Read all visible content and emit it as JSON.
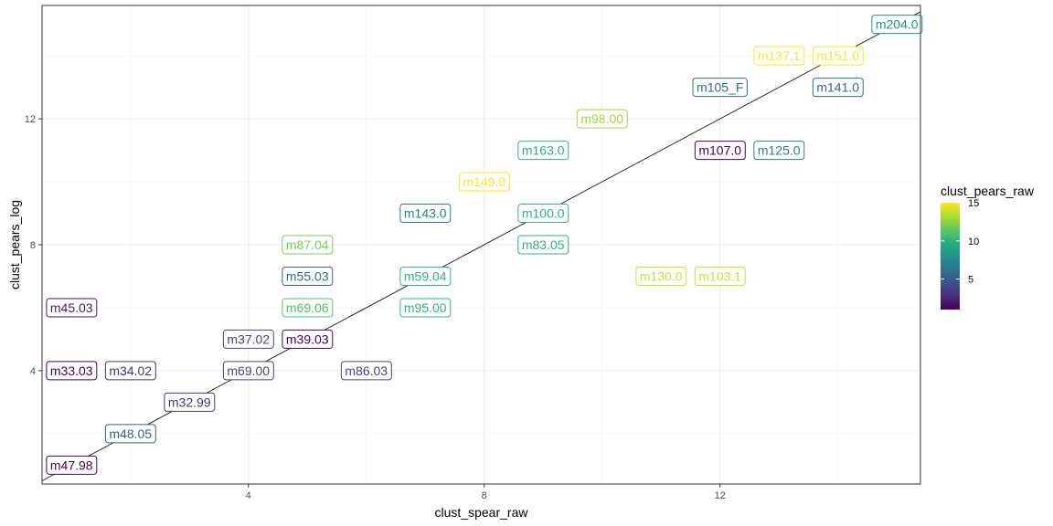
{
  "chart_data": {
    "type": "scatter",
    "title": "",
    "xlabel": "clust_spear_raw",
    "ylabel": "clust_pears_log",
    "xlim": [
      0.5,
      15.4
    ],
    "ylim": [
      0.4,
      15.6
    ],
    "xticks": [
      4,
      8,
      12
    ],
    "yticks": [
      4,
      8,
      12
    ],
    "grid": true,
    "reference_line": "y = x",
    "color_scale": "viridis",
    "legend": {
      "title": "clust_pears_raw",
      "position": "right",
      "range": [
        1,
        15
      ],
      "ticks": [
        5,
        10,
        15
      ]
    },
    "points": [
      {
        "label": "m204.0",
        "x": 15,
        "y": 15,
        "color_value": 8
      },
      {
        "label": "m137.1",
        "x": 13,
        "y": 14,
        "color_value": 15
      },
      {
        "label": "m151.0",
        "x": 14,
        "y": 14,
        "color_value": 15
      },
      {
        "label": "m105_F",
        "x": 12,
        "y": 13,
        "color_value": 6
      },
      {
        "label": "m141.0",
        "x": 14,
        "y": 13,
        "color_value": 6
      },
      {
        "label": "m98.00",
        "x": 10,
        "y": 12,
        "color_value": 13
      },
      {
        "label": "m163.0",
        "x": 9,
        "y": 11,
        "color_value": 10
      },
      {
        "label": "m107.0",
        "x": 12,
        "y": 11,
        "color_value": 1
      },
      {
        "label": "m125.0",
        "x": 13,
        "y": 11,
        "color_value": 7
      },
      {
        "label": "m149.0",
        "x": 8,
        "y": 10,
        "color_value": 15
      },
      {
        "label": "m143.0",
        "x": 7,
        "y": 9,
        "color_value": 7
      },
      {
        "label": "m100.0",
        "x": 9,
        "y": 9,
        "color_value": 10
      },
      {
        "label": "m87.04",
        "x": 5,
        "y": 8,
        "color_value": 12
      },
      {
        "label": "m83.05",
        "x": 9,
        "y": 8,
        "color_value": 10
      },
      {
        "label": "m55.03",
        "x": 5,
        "y": 7,
        "color_value": 6
      },
      {
        "label": "m59.04",
        "x": 7,
        "y": 7,
        "color_value": 10
      },
      {
        "label": "m130.0",
        "x": 11,
        "y": 7,
        "color_value": 14
      },
      {
        "label": "m103.1",
        "x": 12,
        "y": 7,
        "color_value": 14
      },
      {
        "label": "m45.03",
        "x": 1,
        "y": 6,
        "color_value": 2
      },
      {
        "label": "m69.06",
        "x": 5,
        "y": 6,
        "color_value": 11
      },
      {
        "label": "m95.00",
        "x": 7,
        "y": 6,
        "color_value": 10
      },
      {
        "label": "m37.02",
        "x": 4,
        "y": 5,
        "color_value": 4
      },
      {
        "label": "m39.03",
        "x": 5,
        "y": 5,
        "color_value": 1
      },
      {
        "label": "m33.03",
        "x": 1,
        "y": 4,
        "color_value": 1
      },
      {
        "label": "m34.02",
        "x": 2,
        "y": 4,
        "color_value": 3
      },
      {
        "label": "m69.00",
        "x": 4,
        "y": 4,
        "color_value": 4
      },
      {
        "label": "m86.03",
        "x": 6,
        "y": 4,
        "color_value": 4
      },
      {
        "label": "m32.99",
        "x": 3,
        "y": 3,
        "color_value": 3
      },
      {
        "label": "m48.05",
        "x": 2,
        "y": 2,
        "color_value": 5
      },
      {
        "label": "m47.98",
        "x": 1,
        "y": 1,
        "color_value": 1
      }
    ]
  }
}
